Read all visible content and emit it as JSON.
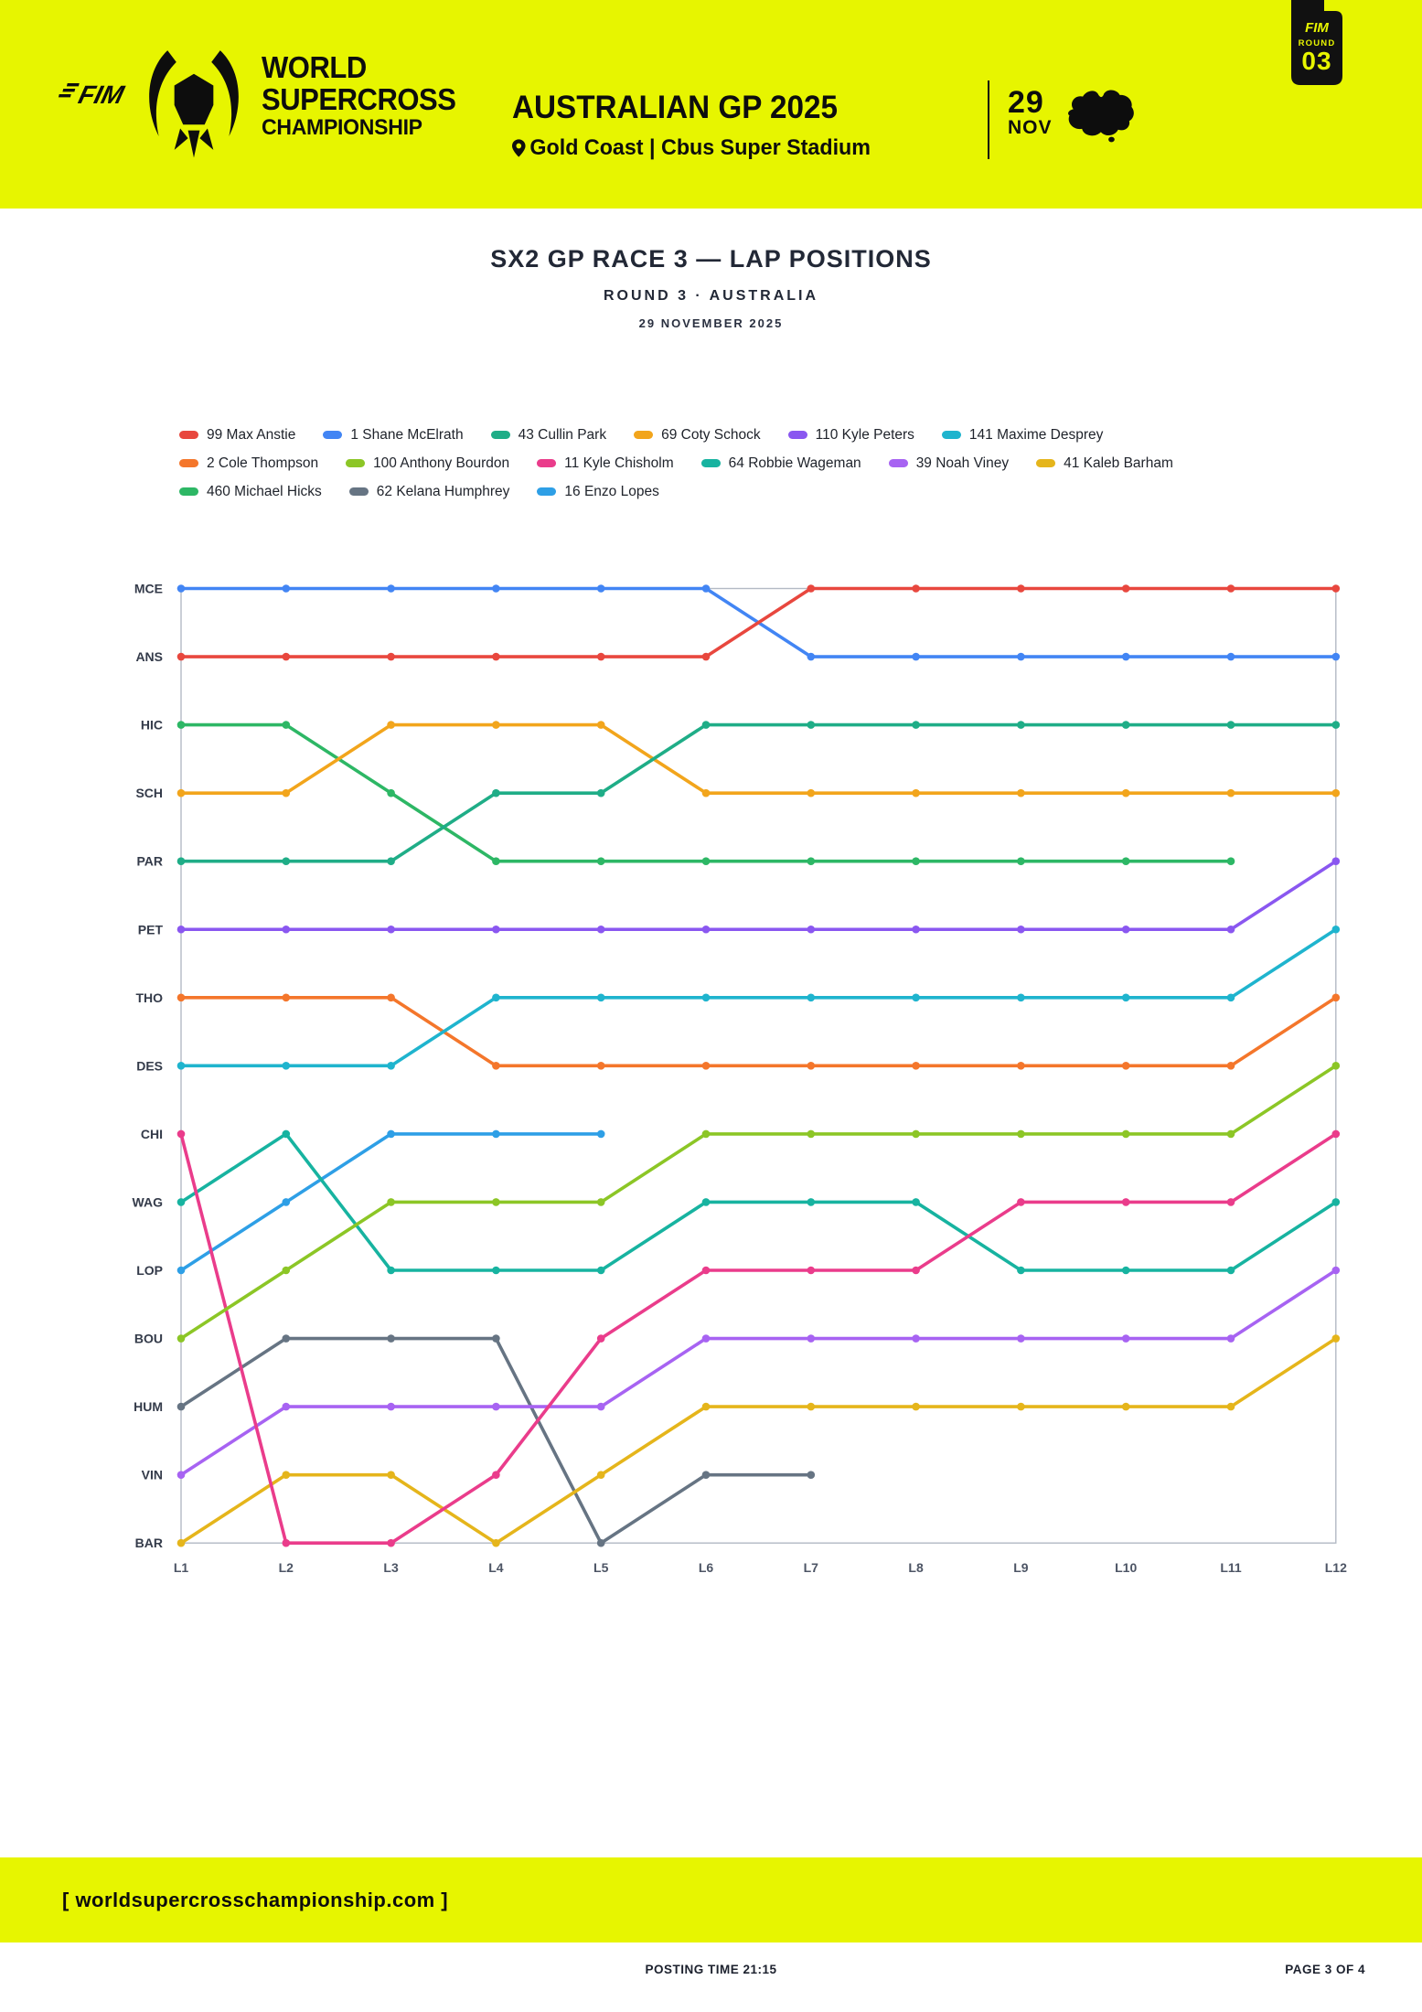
{
  "header": {
    "fim_label": "FIM",
    "brand_line1": "WORLD",
    "brand_line2": "SUPERCROSS",
    "brand_line3": "CHAMPIONSHIP",
    "event_title": "AUSTRALIAN GP 2025",
    "event_location": "Gold Coast | Cbus Super Stadium",
    "date_day": "29",
    "date_month": "NOV",
    "badge_fim": "FIM",
    "badge_round_label": "ROUND",
    "badge_round_number": "03",
    "background_color": "#E7F500",
    "foreground_color": "#0d0d0d"
  },
  "title_block": {
    "title": "SX2 GP RACE 3 — LAP POSITIONS",
    "subtitle": "ROUND 3 · AUSTRALIA",
    "date": "29 NOVEMBER 2025"
  },
  "footer": {
    "website": "[ worldsupercrosschampionship.com ]",
    "posting_time": "POSTING TIME 21:15",
    "page_indicator": "PAGE 3 OF 4"
  },
  "chart_data": {
    "type": "line",
    "style": "bump-chart (position per lap, P1 at top, dots at each lap, DNF lines stop early)",
    "x_labels": [
      "L1",
      "L2",
      "L3",
      "L4",
      "L5",
      "L6",
      "L7",
      "L8",
      "L9",
      "L10",
      "L11",
      "L12"
    ],
    "y_labels": [
      "MCE",
      "ANS",
      "HIC",
      "SCH",
      "PAR",
      "PET",
      "THO",
      "DES",
      "CHI",
      "WAG",
      "LOP",
      "BOU",
      "HUM",
      "VIN",
      "BAR"
    ],
    "y_axis_meaning": "Row = running position P1(top)..P15(bottom); rows named by rider holding that position on lap 1",
    "grid_color": "#b3bac4",
    "legend_rows": [
      6,
      6,
      3
    ],
    "series": [
      {
        "number": "99",
        "name": "Max Anstie",
        "abbr": "ANS",
        "color": "#E8473E",
        "positions": [
          2,
          2,
          2,
          2,
          2,
          2,
          1,
          1,
          1,
          1,
          1,
          1
        ]
      },
      {
        "number": "1",
        "name": "Shane McElrath",
        "abbr": "MCE",
        "color": "#4285F4",
        "positions": [
          1,
          1,
          1,
          1,
          1,
          1,
          2,
          2,
          2,
          2,
          2,
          2
        ]
      },
      {
        "number": "43",
        "name": "Cullin Park",
        "abbr": "PAR",
        "color": "#1FAD87",
        "positions": [
          5,
          5,
          5,
          4,
          4,
          3,
          3,
          3,
          3,
          3,
          3,
          3
        ]
      },
      {
        "number": "69",
        "name": "Coty Schock",
        "abbr": "SCH",
        "color": "#F2A51C",
        "positions": [
          4,
          4,
          3,
          3,
          3,
          4,
          4,
          4,
          4,
          4,
          4,
          4
        ]
      },
      {
        "number": "110",
        "name": "Kyle Peters",
        "abbr": "PET",
        "color": "#8A57F0",
        "positions": [
          6,
          6,
          6,
          6,
          6,
          6,
          6,
          6,
          6,
          6,
          6,
          5
        ]
      },
      {
        "number": "141",
        "name": "Maxime Desprey",
        "abbr": "DES",
        "color": "#1FB4CE",
        "positions": [
          8,
          8,
          8,
          7,
          7,
          7,
          7,
          7,
          7,
          7,
          7,
          6
        ]
      },
      {
        "number": "2",
        "name": "Cole Thompson",
        "abbr": "THO",
        "color": "#F4762B",
        "positions": [
          7,
          7,
          7,
          8,
          8,
          8,
          8,
          8,
          8,
          8,
          8,
          7
        ]
      },
      {
        "number": "100",
        "name": "Anthony Bourdon",
        "abbr": "BOU",
        "color": "#8CC626",
        "positions": [
          12,
          11,
          10,
          10,
          10,
          9,
          9,
          9,
          9,
          9,
          9,
          8
        ]
      },
      {
        "number": "11",
        "name": "Kyle Chisholm",
        "abbr": "CHI",
        "color": "#EA3C8B",
        "positions": [
          9,
          15,
          15,
          14,
          12,
          11,
          11,
          11,
          10,
          10,
          10,
          9
        ]
      },
      {
        "number": "64",
        "name": "Robbie Wageman",
        "abbr": "WAG",
        "color": "#17B3A0",
        "positions": [
          10,
          9,
          11,
          11,
          11,
          10,
          10,
          10,
          11,
          11,
          11,
          10
        ]
      },
      {
        "number": "39",
        "name": "Noah Viney",
        "abbr": "VIN",
        "color": "#A763F2",
        "positions": [
          14,
          13,
          13,
          13,
          13,
          12,
          12,
          12,
          12,
          12,
          12,
          11
        ]
      },
      {
        "number": "41",
        "name": "Kaleb Barham",
        "abbr": "BAR",
        "color": "#E5B51B",
        "positions": [
          15,
          14,
          14,
          15,
          14,
          13,
          13,
          13,
          13,
          13,
          13,
          12
        ]
      },
      {
        "number": "460",
        "name": "Michael Hicks",
        "abbr": "HIC",
        "color": "#2DB765",
        "positions": [
          3,
          3,
          4,
          5,
          5,
          5,
          5,
          5,
          5,
          5,
          5,
          null
        ]
      },
      {
        "number": "62",
        "name": "Kelana Humphrey",
        "abbr": "HUM",
        "color": "#667483",
        "positions": [
          13,
          12,
          12,
          12,
          15,
          14,
          14,
          null,
          null,
          null,
          null,
          null
        ]
      },
      {
        "number": "16",
        "name": "Enzo Lopes",
        "abbr": "LOP",
        "color": "#2E9FE6",
        "positions": [
          11,
          10,
          9,
          9,
          9,
          null,
          null,
          null,
          null,
          null,
          null,
          null
        ]
      }
    ]
  }
}
